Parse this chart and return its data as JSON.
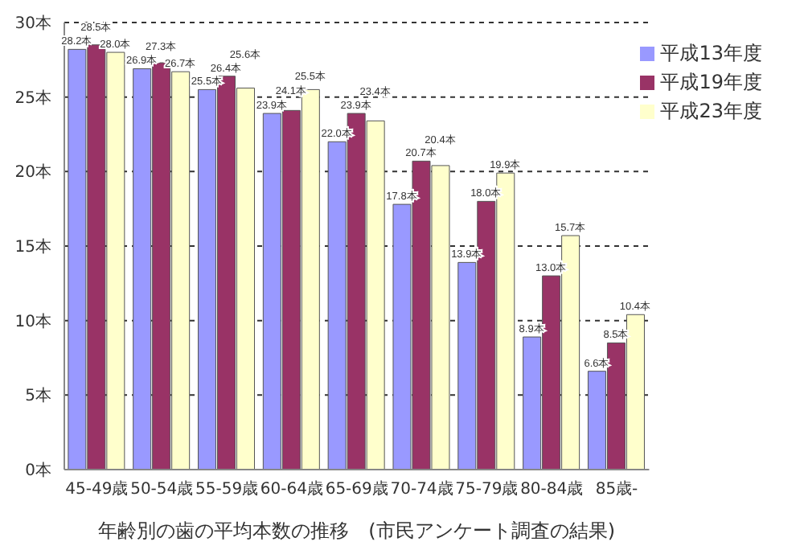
{
  "chart_data": {
    "type": "bar",
    "xlabel": "年齢別の歯の平均本数の推移　(市民アンケート調査の結果)",
    "categories": [
      "45-49歳",
      "50-54歳",
      "55-59歳",
      "60-64歳",
      "65-69歳",
      "70-74歳",
      "75-79歳",
      "80-84歳",
      "85歳-"
    ],
    "series": [
      {
        "name": "平成13年度",
        "color": "#9999ff",
        "values": [
          28.2,
          26.9,
          25.5,
          23.9,
          22.0,
          17.8,
          13.9,
          8.9,
          6.6
        ],
        "value_labels": [
          "28.2本",
          "26.9本",
          "25.5本",
          "23.9本",
          "22.0本",
          "17.8本",
          "13.9本",
          "8.9本",
          "6.6本"
        ]
      },
      {
        "name": "平成19年度",
        "color": "#993366",
        "values": [
          28.5,
          27.3,
          26.4,
          24.1,
          23.9,
          20.7,
          18.0,
          13.0,
          8.5
        ],
        "value_labels": [
          "28.5本",
          "27.3本",
          "26.4本",
          "24.1本",
          "23.9本",
          "20.7本",
          "18.0本",
          "13.0本",
          "8.5本"
        ]
      },
      {
        "name": "平成23年度",
        "color": "#ffffcc",
        "values": [
          28.0,
          26.7,
          25.6,
          25.5,
          23.4,
          20.4,
          19.9,
          15.7,
          10.4
        ],
        "value_labels": [
          "28.0本",
          "26.7本",
          "25.6本",
          "25.5本",
          "23.4本",
          "20.4本",
          "19.9本",
          "15.7本",
          "10.4本"
        ]
      }
    ],
    "ylim": [
      0,
      30
    ],
    "yticks": [
      {
        "value": 0,
        "label": "0本"
      },
      {
        "value": 5,
        "label": "5本"
      },
      {
        "value": 10,
        "label": "10本"
      },
      {
        "value": 15,
        "label": "15本"
      },
      {
        "value": 20,
        "label": "20本"
      },
      {
        "value": 25,
        "label": "25本"
      },
      {
        "value": 30,
        "label": "30本"
      }
    ],
    "grid": "y",
    "legend": "top right"
  }
}
